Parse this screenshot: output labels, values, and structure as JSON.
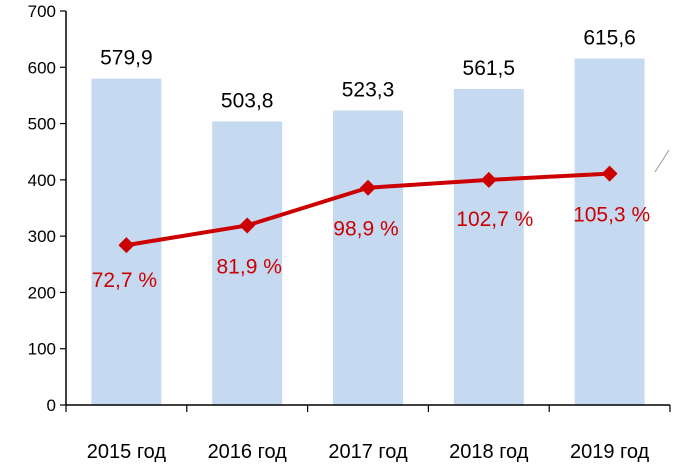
{
  "chart_data": {
    "type": "bar",
    "categories": [
      "2015 год",
      "2016 год",
      "2017 год",
      "2018 год",
      "2019 год"
    ],
    "ylim": [
      0,
      700
    ],
    "yticks": [
      0,
      100,
      200,
      300,
      400,
      500,
      600,
      700
    ],
    "grid": false,
    "series": [
      {
        "type": "bar",
        "values": [
          579.9,
          503.8,
          523.3,
          561.5,
          615.6
        ],
        "labels": [
          "579,9",
          "503,8",
          "523,3",
          "561,5",
          "615,6"
        ],
        "color": "#c5d9f1"
      },
      {
        "type": "line",
        "values": [
          284,
          319,
          386,
          400,
          411
        ],
        "labels": [
          "72,7 %",
          "81,9 %",
          "98,9 %",
          "102,7 %",
          "105,3 %"
        ],
        "color": "#cc0000"
      }
    ]
  }
}
